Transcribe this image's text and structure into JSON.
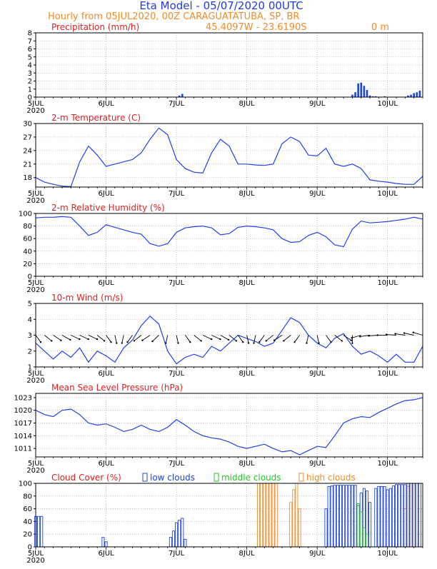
{
  "header": {
    "title": "Eta Model - 05/07/2020 00UTC",
    "subtitle": "Hourly from 05JUL2020, 00Z  CARAGUATATUBA, SP, BR",
    "location": "45.4097W - 23.6190S",
    "elevation": "0   m"
  },
  "colors": {
    "title": "#1e3cdc",
    "subtitle": "#f08c28",
    "panel_title": "#e02020",
    "line": "#2040e8",
    "low": "#1e46dc",
    "mid": "#1ec81e",
    "high": "#f08c28",
    "axis": "#000000",
    "grid": "#9a9a9a"
  },
  "x_axis": {
    "start_day_label": "5JUL",
    "year_label": "2020",
    "day_labels": [
      "5JUL",
      "6JUL",
      "7JUL",
      "8JUL",
      "9JUL",
      "10JUL"
    ],
    "hours_total": 132
  },
  "chart_data": [
    {
      "id": "precip",
      "type": "bar",
      "title": "Precipitation (mm/h)",
      "ylabel": "mm/h",
      "ylim": [
        0,
        8
      ],
      "yticks": [
        0,
        1,
        2,
        3,
        4,
        5,
        6,
        7,
        8
      ],
      "hours": [
        49,
        50,
        108,
        109,
        110,
        111,
        112,
        113,
        114,
        115,
        116,
        119,
        127,
        128,
        129,
        130,
        131
      ],
      "values": [
        0.2,
        0.4,
        0.3,
        0.6,
        1.7,
        1.8,
        1.4,
        0.9,
        0.2,
        0.1,
        0.1,
        0.1,
        0.2,
        0.3,
        0.5,
        0.6,
        0.8
      ]
    },
    {
      "id": "temp",
      "type": "line",
      "title": "2-m Temperature (C)",
      "ylim": [
        15.9,
        30
      ],
      "yticks": [
        18,
        21,
        24,
        27,
        30
      ],
      "hours": [
        0,
        3,
        6,
        9,
        12,
        15,
        18,
        21,
        24,
        27,
        30,
        33,
        36,
        39,
        42,
        45,
        48,
        51,
        54,
        57,
        60,
        63,
        66,
        69,
        72,
        75,
        78,
        81,
        84,
        87,
        90,
        93,
        96,
        99,
        102,
        105,
        108,
        111,
        114,
        117,
        120,
        123,
        126,
        129,
        132
      ],
      "values": [
        18.0,
        17.0,
        16.5,
        16.1,
        16.0,
        21.5,
        25.0,
        23.0,
        20.5,
        21.0,
        21.5,
        22.0,
        23.5,
        26.5,
        29.0,
        27.5,
        22.0,
        20.0,
        19.2,
        19.0,
        23.5,
        26.5,
        25.0,
        21.0,
        21.0,
        20.8,
        20.7,
        21.0,
        25.5,
        27.0,
        26.0,
        23.0,
        22.8,
        24.5,
        21.0,
        20.5,
        21.0,
        20.0,
        17.5,
        17.2,
        17.0,
        16.7,
        16.5,
        16.5,
        18.3
      ]
    },
    {
      "id": "rh",
      "type": "line",
      "title": "2-m Relative Humidity (%)",
      "ylim": [
        0,
        100
      ],
      "yticks": [
        0,
        20,
        40,
        60,
        80,
        100
      ],
      "hours": [
        0,
        3,
        6,
        9,
        12,
        15,
        18,
        21,
        24,
        27,
        30,
        33,
        36,
        39,
        42,
        45,
        48,
        51,
        54,
        57,
        60,
        63,
        66,
        69,
        72,
        75,
        78,
        81,
        84,
        87,
        90,
        93,
        96,
        99,
        102,
        105,
        108,
        111,
        114,
        117,
        120,
        123,
        126,
        129,
        132
      ],
      "values": [
        93,
        94,
        94,
        95,
        94,
        80,
        65,
        70,
        82,
        78,
        74,
        70,
        67,
        52,
        48,
        52,
        70,
        77,
        79,
        80,
        77,
        66,
        68,
        78,
        80,
        79,
        77,
        74,
        60,
        54,
        55,
        65,
        70,
        63,
        50,
        47,
        75,
        88,
        85,
        86,
        87,
        89,
        91,
        94,
        91
      ]
    },
    {
      "id": "wind",
      "type": "line",
      "title": "10-m Wind (m/s)",
      "ylim": [
        1,
        5
      ],
      "yticks": [
        1,
        2,
        3,
        4,
        5
      ],
      "hours": [
        0,
        3,
        6,
        9,
        12,
        15,
        18,
        21,
        24,
        27,
        30,
        33,
        36,
        39,
        42,
        45,
        48,
        51,
        54,
        57,
        60,
        63,
        66,
        69,
        72,
        75,
        78,
        81,
        84,
        87,
        90,
        93,
        96,
        99,
        102,
        105,
        108,
        111,
        114,
        117,
        120,
        123,
        126,
        129,
        132
      ],
      "values": [
        2.5,
        2.0,
        1.5,
        2.0,
        1.6,
        2.2,
        1.3,
        2.0,
        1.7,
        1.3,
        2.2,
        2.7,
        3.6,
        4.2,
        3.7,
        2.0,
        1.2,
        1.6,
        1.8,
        1.6,
        2.3,
        2.0,
        2.5,
        3.0,
        2.8,
        2.6,
        2.3,
        2.5,
        3.3,
        4.1,
        3.8,
        3.0,
        2.5,
        2.2,
        2.8,
        3.1,
        2.3,
        1.8,
        2.0,
        1.7,
        1.3,
        1.8,
        1.3,
        1.3,
        2.3
      ],
      "barb_direction_deg": [
        60,
        45,
        40,
        35,
        30,
        30,
        30,
        45,
        60,
        80,
        100,
        120,
        135,
        140,
        130,
        100,
        80,
        60,
        45,
        30,
        30,
        35,
        45,
        60,
        80,
        100,
        120,
        135,
        140,
        135,
        120,
        100,
        80,
        60,
        45,
        40,
        90,
        160,
        170,
        175,
        180,
        185,
        190,
        195,
        200
      ]
    },
    {
      "id": "mslp",
      "type": "line",
      "title": "Mean Sea Level Pressure (hPa)",
      "ylim": [
        1009,
        1024
      ],
      "yticks": [
        1011,
        1014,
        1017,
        1020,
        1023
      ],
      "hours": [
        0,
        3,
        6,
        9,
        12,
        15,
        18,
        21,
        24,
        27,
        30,
        33,
        36,
        39,
        42,
        45,
        48,
        51,
        54,
        57,
        60,
        63,
        66,
        69,
        72,
        75,
        78,
        81,
        84,
        87,
        90,
        93,
        96,
        99,
        102,
        105,
        108,
        111,
        114,
        117,
        120,
        123,
        126,
        129,
        132
      ],
      "values": [
        1020.0,
        1019.0,
        1018.5,
        1020.0,
        1020.3,
        1019.0,
        1017.0,
        1016.5,
        1016.8,
        1016.0,
        1015.0,
        1015.5,
        1016.5,
        1015.5,
        1015.0,
        1016.0,
        1017.8,
        1016.5,
        1015.0,
        1014.0,
        1013.5,
        1013.2,
        1012.5,
        1011.5,
        1011.0,
        1011.5,
        1012.0,
        1011.0,
        1010.2,
        1010.5,
        1009.5,
        1010.5,
        1011.5,
        1011.2,
        1014.0,
        1017.0,
        1018.0,
        1018.5,
        1018.3,
        1019.5,
        1020.5,
        1021.5,
        1022.3,
        1022.5,
        1023.0
      ]
    },
    {
      "id": "cloud",
      "type": "bar",
      "title": "Cloud Cover (%)",
      "legend": [
        "low clouds",
        "middle clouds",
        "high clouds"
      ],
      "ylim": [
        0,
        100
      ],
      "yticks": [
        0,
        20,
        40,
        60,
        80,
        100
      ],
      "low": {
        "hours": [
          0,
          1,
          2,
          23,
          24,
          46,
          47,
          48,
          49,
          50,
          51,
          99,
          100,
          101,
          102,
          103,
          104,
          105,
          106,
          107,
          108,
          109,
          110,
          111,
          112,
          113,
          114,
          116,
          117,
          118,
          119,
          120,
          121,
          122,
          123,
          124,
          125,
          126,
          127,
          128,
          129,
          130,
          131
        ],
        "values": [
          48,
          48,
          48,
          15,
          8,
          15,
          25,
          38,
          42,
          45,
          12,
          60,
          95,
          96,
          97,
          97,
          97,
          97,
          97,
          97,
          97,
          97,
          65,
          85,
          92,
          88,
          70,
          92,
          95,
          95,
          95,
          90,
          92,
          96,
          98,
          98,
          98,
          98,
          100,
          100,
          100,
          100,
          100
        ]
      },
      "middle": {
        "hours": [
          110,
          111,
          112,
          113
        ],
        "values": [
          68,
          55,
          30,
          20
        ]
      },
      "high": {
        "hours": [
          76,
          77,
          78,
          79,
          80,
          81,
          82,
          87,
          88,
          89,
          90,
          126,
          127,
          128,
          129,
          130
        ],
        "values": [
          100,
          100,
          100,
          100,
          100,
          100,
          100,
          70,
          90,
          100,
          60,
          60,
          95,
          100,
          100,
          100
        ]
      }
    }
  ]
}
